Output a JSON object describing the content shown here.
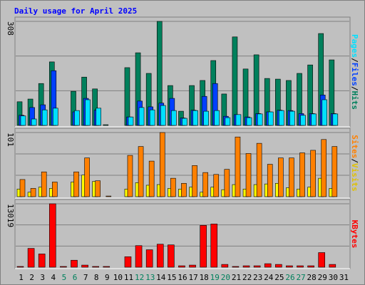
{
  "title": "Daily usage for April 2025",
  "chart_data": [
    {
      "type": "bar",
      "ylim": [
        0,
        308
      ],
      "yticks": [
        308
      ],
      "grid_divisions": 3,
      "separator": "/",
      "series": [
        {
          "name": "Hits",
          "color": "#00805c",
          "values": [
            70,
            78,
            124,
            188,
            0,
            101,
            143,
            108,
            2,
            0,
            171,
            215,
            154,
            308,
            118,
            42,
            118,
            133,
            192,
            93,
            262,
            167,
            209,
            139,
            137,
            133,
            154,
            179,
            272,
            194,
            0
          ]
        },
        {
          "name": "Files",
          "color": "#0040ff",
          "values": [
            30,
            53,
            61,
            162,
            0,
            40,
            80,
            45,
            0,
            0,
            25,
            72,
            55,
            66,
            80,
            22,
            45,
            86,
            124,
            27,
            32,
            25,
            35,
            40,
            45,
            44,
            35,
            35,
            90,
            35,
            0
          ]
        },
        {
          "name": "Pages",
          "color": "#00e0ff",
          "values": [
            28,
            19,
            46,
            51,
            0,
            44,
            76,
            51,
            0,
            0,
            25,
            53,
            46,
            59,
            44,
            21,
            44,
            42,
            44,
            23,
            32,
            23,
            34,
            40,
            44,
            42,
            30,
            34,
            76,
            34,
            0
          ]
        }
      ]
    },
    {
      "type": "bar",
      "ylim": [
        0,
        101
      ],
      "yticks": [
        101
      ],
      "grid_divisions": 3,
      "separator": "/",
      "series": [
        {
          "name": "Visits",
          "color": "#ffff00",
          "values": [
            12,
            7,
            15,
            13,
            0,
            23,
            34,
            24,
            0,
            0,
            12,
            22,
            18,
            19,
            13,
            12,
            15,
            7,
            15,
            11,
            19,
            12,
            19,
            20,
            21,
            14,
            12,
            15,
            29,
            13,
            0
          ]
        },
        {
          "name": "Sites",
          "color": "#ff8000",
          "values": [
            27,
            13,
            39,
            23,
            0,
            39,
            61,
            25,
            1,
            0,
            65,
            79,
            56,
            101,
            29,
            21,
            49,
            38,
            35,
            43,
            94,
            68,
            84,
            51,
            61,
            61,
            69,
            73,
            90,
            79,
            0
          ]
        }
      ]
    },
    {
      "type": "bar",
      "ylim": [
        0,
        13019
      ],
      "yticks": [
        13019
      ],
      "grid_divisions": 3,
      "categories": [
        "1",
        "2",
        "3",
        "4",
        "5",
        "6",
        "7",
        "8",
        "9",
        "10",
        "11",
        "12",
        "13",
        "14",
        "15",
        "16",
        "17",
        "18",
        "19",
        "20",
        "21",
        "22",
        "23",
        "24",
        "25",
        "26",
        "27",
        "28",
        "29",
        "30",
        "31"
      ],
      "highlight_indices": [
        4,
        5,
        11,
        12,
        18,
        19,
        25,
        26
      ],
      "highlight_color": "#00805c",
      "series": [
        {
          "name": "KBytes",
          "color": "#ff0000",
          "values": [
            150,
            3860,
            2720,
            13019,
            150,
            1430,
            430,
            150,
            150,
            0,
            2150,
            4430,
            3580,
            4720,
            4580,
            290,
            430,
            8580,
            8870,
            570,
            150,
            290,
            290,
            720,
            570,
            290,
            290,
            290,
            3000,
            570,
            0
          ]
        }
      ]
    }
  ]
}
